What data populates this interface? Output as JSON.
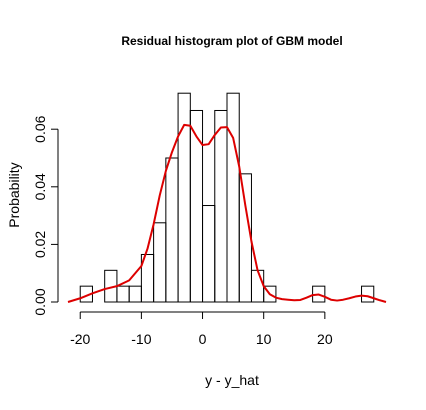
{
  "chart_data": {
    "type": "histogram",
    "title": "Residual histogram plot of GBM model",
    "xlabel": "y - y_hat",
    "ylabel": "Probability",
    "xlim": [
      -22,
      30
    ],
    "ylim": [
      0,
      0.075
    ],
    "x_ticks": [
      -20,
      -10,
      0,
      10,
      20
    ],
    "x_tick_labels": [
      "-20",
      "-10",
      "0",
      "10",
      "20"
    ],
    "y_ticks": [
      0.0,
      0.02,
      0.04,
      0.06
    ],
    "y_tick_labels": [
      "0.00",
      "0.02",
      "0.04",
      "0.06"
    ],
    "bin_width": 2,
    "bins": [
      {
        "start": -20,
        "end": -18,
        "density": 0.0055
      },
      {
        "start": -18,
        "end": -16,
        "density": 0.0
      },
      {
        "start": -16,
        "end": -14,
        "density": 0.011
      },
      {
        "start": -14,
        "end": -12,
        "density": 0.0055
      },
      {
        "start": -12,
        "end": -10,
        "density": 0.0055
      },
      {
        "start": -10,
        "end": -8,
        "density": 0.0165
      },
      {
        "start": -8,
        "end": -6,
        "density": 0.0275
      },
      {
        "start": -6,
        "end": -4,
        "density": 0.05
      },
      {
        "start": -4,
        "end": -2,
        "density": 0.0725
      },
      {
        "start": -2,
        "end": 0,
        "density": 0.0665
      },
      {
        "start": 0,
        "end": 2,
        "density": 0.0335
      },
      {
        "start": 2,
        "end": 4,
        "density": 0.0665
      },
      {
        "start": 4,
        "end": 6,
        "density": 0.0725
      },
      {
        "start": 6,
        "end": 8,
        "density": 0.0445
      },
      {
        "start": 8,
        "end": 10,
        "density": 0.011
      },
      {
        "start": 10,
        "end": 12,
        "density": 0.0055
      },
      {
        "start": 12,
        "end": 14,
        "density": 0.0
      },
      {
        "start": 14,
        "end": 16,
        "density": 0.0
      },
      {
        "start": 16,
        "end": 18,
        "density": 0.0
      },
      {
        "start": 18,
        "end": 20,
        "density": 0.0055
      },
      {
        "start": 20,
        "end": 22,
        "density": 0.0
      },
      {
        "start": 22,
        "end": 24,
        "density": 0.0
      },
      {
        "start": 24,
        "end": 26,
        "density": 0.0
      },
      {
        "start": 26,
        "end": 28,
        "density": 0.0055
      }
    ],
    "density_curve": {
      "color": "#dd0000",
      "x": [
        -22,
        -20,
        -18,
        -16,
        -14,
        -12,
        -10,
        -9,
        -8,
        -7,
        -6,
        -5,
        -4,
        -3,
        -2,
        -1,
        0,
        1,
        2,
        3,
        4,
        5,
        6,
        7,
        8,
        9,
        10,
        11,
        12,
        13,
        14,
        15,
        16,
        17,
        18,
        19,
        20,
        21,
        22,
        23,
        24,
        25,
        26,
        27,
        28,
        29,
        30
      ],
      "y": [
        0.0,
        0.0013,
        0.003,
        0.0045,
        0.0055,
        0.0075,
        0.0125,
        0.0185,
        0.027,
        0.037,
        0.0455,
        0.052,
        0.0575,
        0.0615,
        0.0612,
        0.0575,
        0.0545,
        0.0548,
        0.058,
        0.0606,
        0.0607,
        0.057,
        0.047,
        0.0335,
        0.021,
        0.011,
        0.0055,
        0.0027,
        0.0015,
        0.001,
        0.0008,
        0.0006,
        0.0007,
        0.0015,
        0.0024,
        0.0026,
        0.0018,
        0.0008,
        0.0005,
        0.0008,
        0.0013,
        0.0019,
        0.0022,
        0.002,
        0.0013,
        0.0006,
        0.0
      ]
    },
    "grid": false,
    "legend": "none"
  }
}
